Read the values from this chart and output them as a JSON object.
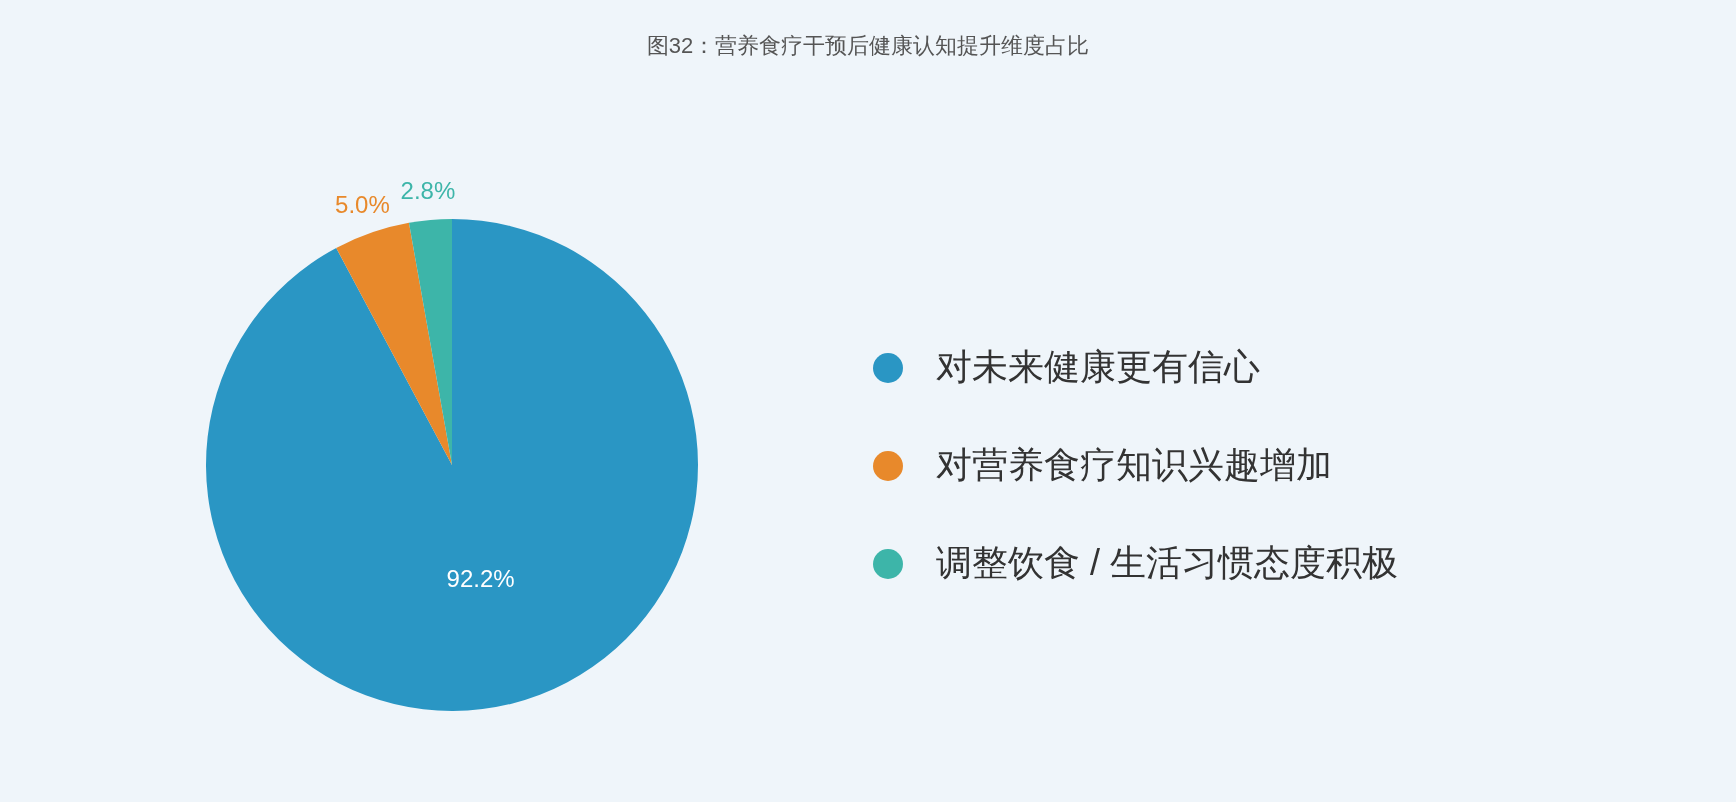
{
  "chart_data": {
    "type": "pie",
    "title": "图32：营养食疗干预后健康认知提升维度占比",
    "categories": [
      "对未来健康更有信心",
      "对营养食疗知识兴趣增加",
      "调整饮食 / 生活习惯态度积极"
    ],
    "values": [
      92.2,
      5.0,
      2.8
    ],
    "colors": [
      "#2a96c4",
      "#e8892b",
      "#3db5a9"
    ],
    "value_labels": [
      "92.2%",
      "5.0%",
      "2.8%"
    ],
    "legend": "right"
  }
}
